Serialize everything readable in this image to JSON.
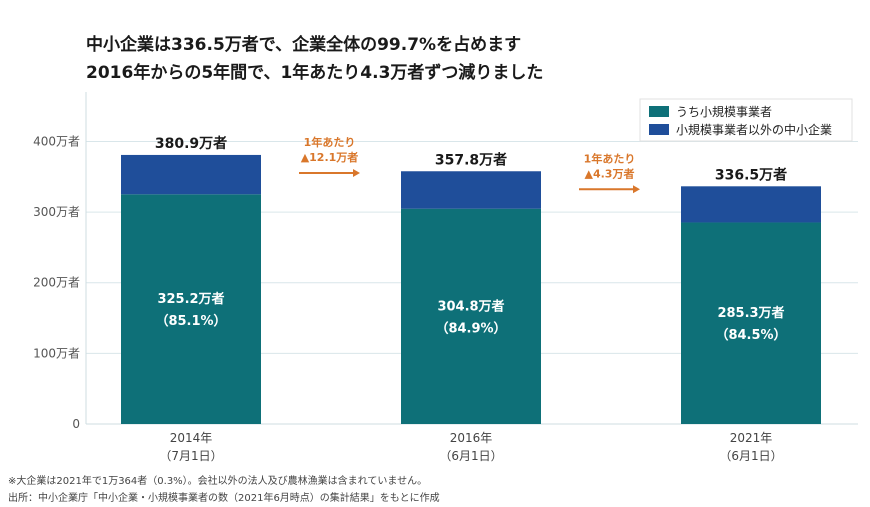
{
  "title_lines": [
    "中小企業は336.5万者で、企業全体の99.7%を占めます",
    "2016年からの5年間で、1年あたり4.3万者ずつ減りました"
  ],
  "chart_data": {
    "type": "bar",
    "stacked": true,
    "categories": [
      [
        "2014年",
        "（7月1日）"
      ],
      [
        "2016年",
        "（6月1日）"
      ],
      [
        "2021年",
        "（6月1日）"
      ]
    ],
    "series": [
      {
        "name": "うち小規模事業者",
        "values": [
          325.2,
          304.8,
          285.3
        ],
        "color": "#0e7078"
      },
      {
        "name": "小規模事業者以外の中小企業",
        "values": [
          55.7,
          53.0,
          51.2
        ],
        "color": "#1f4e9a"
      }
    ],
    "inner_labels": [
      [
        "325.2万者",
        "（85.1%）"
      ],
      [
        "304.8万者",
        "（84.9%）"
      ],
      [
        "285.3万者",
        "（84.5%）"
      ]
    ],
    "total_labels": [
      "380.9万者",
      "357.8万者",
      "336.5万者"
    ],
    "annotations": [
      [
        "1年あたり",
        "▲12.1万者"
      ],
      [
        "1年あたり",
        "▲4.3万者"
      ]
    ],
    "annotation_color": "#d9772b",
    "y_ticks": [
      0,
      100,
      200,
      300,
      400
    ],
    "y_tick_labels": [
      "0",
      "100万者",
      "200万者",
      "300万者",
      "400万者"
    ],
    "ylim": [
      0,
      470
    ],
    "grid": true,
    "legend_position": "top-right"
  },
  "footnotes": [
    "※大企業は2021年で1万364者（0.3%）。会社以外の法人及び農林漁業は含まれていません。",
    "出所：中小企業庁「中小企業・小規模事業者の数（2021年6月時点）の集計結果」をもとに作成"
  ]
}
